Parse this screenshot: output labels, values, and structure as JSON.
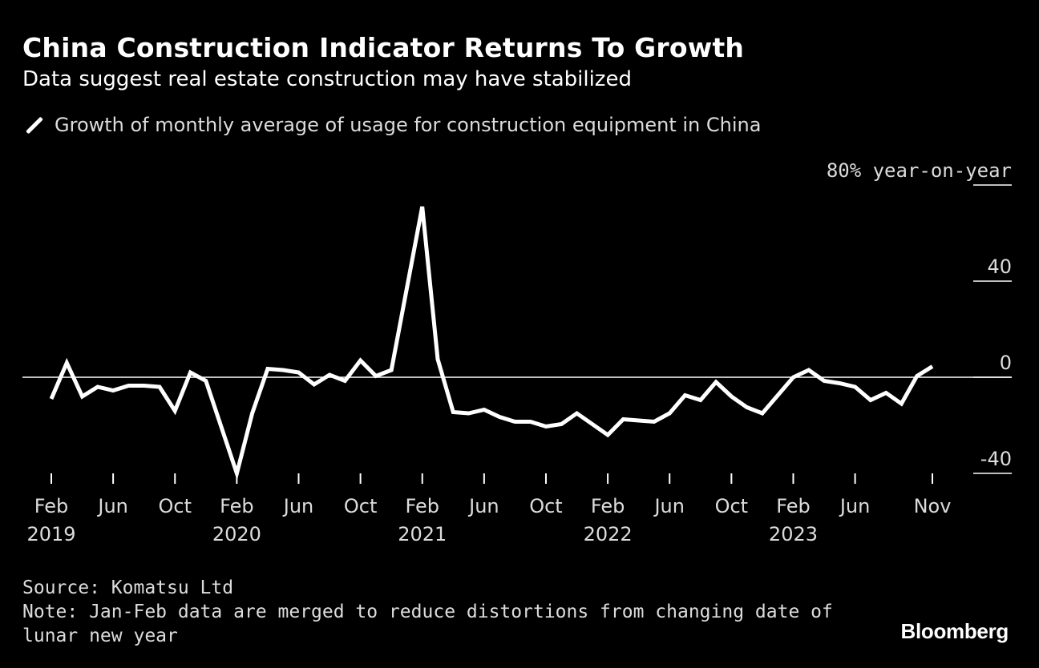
{
  "header": {
    "title": "China Construction Indicator Returns To Growth",
    "subtitle": "Data suggest real estate construction may have stabilized"
  },
  "legend": {
    "label": "Growth of monthly average of usage for construction equipment in China"
  },
  "footer": {
    "source": "Source: Komatsu Ltd",
    "note_line1": "Note: Jan-Feb data are merged to reduce distortions from changing date of",
    "note_line2": "lunar new year",
    "brand": "Bloomberg"
  },
  "colors": {
    "background": "#000000",
    "line": "#ffffff",
    "text": "#dcdcdc"
  },
  "chart_data": {
    "type": "line",
    "title": "China Construction Indicator Returns To Growth",
    "subtitle": "Data suggest real estate construction may have stabilized",
    "ylabel": "80% year-on-year",
    "ylim": [
      -40,
      80
    ],
    "yticks": [
      {
        "value": 80,
        "label": "80% year-on-year"
      },
      {
        "value": 40,
        "label": "40"
      },
      {
        "value": 0,
        "label": "0"
      },
      {
        "value": -40,
        "label": "-40"
      }
    ],
    "xticks": [
      {
        "index": 0,
        "label": "Feb",
        "year": "2019"
      },
      {
        "index": 4,
        "label": "Jun",
        "year": ""
      },
      {
        "index": 8,
        "label": "Oct",
        "year": ""
      },
      {
        "index": 12,
        "label": "Feb",
        "year": "2020"
      },
      {
        "index": 16,
        "label": "Jun",
        "year": ""
      },
      {
        "index": 20,
        "label": "Oct",
        "year": ""
      },
      {
        "index": 24,
        "label": "Feb",
        "year": "2021"
      },
      {
        "index": 28,
        "label": "Jun",
        "year": ""
      },
      {
        "index": 32,
        "label": "Oct",
        "year": ""
      },
      {
        "index": 36,
        "label": "Feb",
        "year": "2022"
      },
      {
        "index": 40,
        "label": "Jun",
        "year": ""
      },
      {
        "index": 44,
        "label": "Oct",
        "year": ""
      },
      {
        "index": 48,
        "label": "Feb",
        "year": "2023"
      },
      {
        "index": 52,
        "label": "Jun",
        "year": ""
      },
      {
        "index": 57,
        "label": "Nov",
        "year": ""
      }
    ],
    "series": [
      {
        "name": "Growth of monthly average of usage for construction equipment in China",
        "x": [
          "Feb 2019",
          "Mar 2019",
          "Apr 2019",
          "May 2019",
          "Jun 2019",
          "Jul 2019",
          "Aug 2019",
          "Sep 2019",
          "Oct 2019",
          "Nov 2019",
          "Dec 2019",
          "Feb 2020",
          "Mar 2020",
          "Apr 2020",
          "May 2020",
          "Jun 2020",
          "Jul 2020",
          "Aug 2020",
          "Sep 2020",
          "Oct 2020",
          "Nov 2020",
          "Dec 2020",
          "Feb 2021",
          "Mar 2021",
          "Apr 2021",
          "May 2021",
          "Jun 2021",
          "Jul 2021",
          "Aug 2021",
          "Sep 2021",
          "Oct 2021",
          "Nov 2021",
          "Dec 2021",
          "Feb 2022",
          "Mar 2022",
          "Apr 2022",
          "May 2022",
          "Jun 2022",
          "Jul 2022",
          "Aug 2022",
          "Sep 2022",
          "Oct 2022",
          "Nov 2022",
          "Dec 2022",
          "Feb 2023",
          "Mar 2023",
          "Apr 2023",
          "May 2023",
          "Jun 2023",
          "Jul 2023",
          "Aug 2023",
          "Sep 2023",
          "Oct 2023",
          "Nov 2023"
        ],
        "xindex": [
          0,
          1,
          2,
          3,
          4,
          5,
          6,
          7,
          8,
          9,
          10,
          12,
          13,
          14,
          15,
          16,
          17,
          18,
          19,
          20,
          21,
          22,
          24,
          25,
          26,
          27,
          28,
          29,
          30,
          31,
          32,
          33,
          34,
          36,
          37,
          38,
          39,
          40,
          41,
          42,
          43,
          44,
          45,
          46,
          48,
          49,
          50,
          51,
          52,
          53,
          54,
          55,
          56,
          57
        ],
        "values": [
          -9,
          6,
          -8,
          -4,
          -5.5,
          -3.5,
          -3.5,
          -4,
          -14,
          2,
          -1.5,
          -40,
          -15,
          3.5,
          3,
          2,
          -3,
          1,
          -1.5,
          7,
          0.5,
          3,
          71,
          7.5,
          -14.5,
          -15,
          -13.5,
          -16.5,
          -18.5,
          -18.5,
          -20.5,
          -19.5,
          -15,
          -24,
          -17.5,
          -18,
          -18.5,
          -15,
          -7.5,
          -9.5,
          -2,
          -8,
          -12.5,
          -15,
          0,
          3,
          -1.5,
          -2.5,
          -4,
          -9.5,
          -6.5,
          -11,
          0.5,
          4.5
        ]
      }
    ]
  }
}
